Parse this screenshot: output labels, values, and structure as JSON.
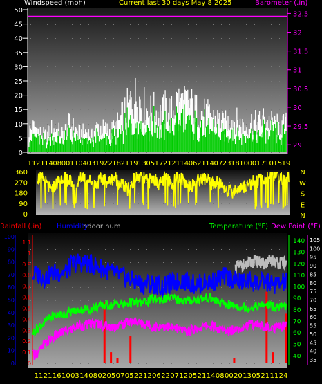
{
  "header": {
    "left_label": "Windspeed (mph)",
    "title": "Current last 30 days May 8 2025",
    "right_label": "Barometer (.in)"
  },
  "colors": {
    "wind_label": "#ffffff",
    "title": "#ffff00",
    "barometer": "#ff00ff",
    "wind_gust": "#ffffff",
    "wind_avg": "#00cc00",
    "direction": "#ffff00",
    "rain": "#ff0000",
    "humidity": "#0000ff",
    "indoor_hum": "#bbbbbb",
    "temperature": "#00ff00",
    "dew_point": "#ff00ff",
    "xaxis": "#ffff00"
  },
  "wind_panel": {
    "left_ticks": [
      "50",
      "45",
      "40",
      "35",
      "30",
      "25",
      "20",
      "15",
      "10",
      "5",
      "0"
    ],
    "right_ticks": [
      "32.5",
      "32",
      "31.5",
      "31",
      "30.5",
      "30",
      "29.5",
      "29"
    ],
    "x_ticks": [
      "11",
      "21",
      "14",
      "08",
      "00",
      "11",
      "04",
      "03",
      "19",
      "22",
      "18",
      "21",
      "19",
      "13",
      "05",
      "17",
      "21",
      "21",
      "14",
      "06",
      "21",
      "14",
      "07",
      "23",
      "18",
      "10",
      "00",
      "17",
      "10",
      "15",
      "19"
    ]
  },
  "direction_panel": {
    "left_ticks": [
      "360",
      "270",
      "180",
      "90",
      "0"
    ],
    "right_ticks": [
      "N",
      "W",
      "S",
      "E",
      "N"
    ]
  },
  "climate_panel": {
    "labels": {
      "rain": "Rainfall (.in)",
      "humidity": "Humidity",
      "indoor_hum": "Indoor hum",
      "temperature": "Temperature (°F)",
      "dew_point": "Dew Point (°F)"
    },
    "humidity_ticks": [
      "100",
      "90",
      "80",
      "70",
      "60",
      "50",
      "40",
      "30",
      "20",
      "10",
      "0"
    ],
    "rain_ticks": [
      "1.1",
      "1",
      "0.9",
      "0.8",
      "0.7",
      "0.6",
      "0.5",
      "0.4",
      "0.3",
      "0.2",
      "0.1",
      "0"
    ],
    "temp_ticks": [
      "140",
      "130",
      "120",
      "110",
      "100",
      "90",
      "80",
      "70",
      "60",
      "50",
      "40"
    ],
    "dew_ticks": [
      "105",
      "100",
      "95",
      "90",
      "85",
      "80",
      "75",
      "70",
      "65",
      "60",
      "55",
      "50",
      "45",
      "40",
      "35"
    ],
    "x_ticks": [
      "11",
      "21",
      "16",
      "10",
      "03",
      "14",
      "08",
      "02",
      "05",
      "07",
      "05",
      "22",
      "12",
      "06",
      "22",
      "07",
      "12",
      "05",
      "21",
      "14",
      "08",
      "00",
      "20",
      "13",
      "05",
      "21",
      "11",
      "24"
    ]
  },
  "chart_data": [
    {
      "type": "line",
      "title": "Current last 30 days May 8 2025",
      "ylabel": "Windspeed (mph)",
      "y2label": "Barometer (.in)",
      "ylim": [
        0,
        50
      ],
      "y2lim": [
        28.8,
        32.6
      ],
      "series": [
        {
          "name": "Windspeed (mph)",
          "values": [
            9,
            11,
            8,
            7,
            10,
            9,
            8,
            12,
            10,
            8,
            9,
            7,
            11,
            10,
            9,
            10,
            14,
            18,
            22,
            24,
            20,
            17,
            18,
            16,
            19,
            17,
            22,
            20,
            21,
            18,
            17,
            16,
            15,
            14,
            12,
            13,
            14,
            12,
            11,
            13,
            12,
            14,
            13,
            12,
            11,
            12
          ]
        },
        {
          "name": "Barometer (.in)",
          "values": [
            32.42,
            32.42,
            32.42,
            32.42,
            32.42,
            32.42,
            32.42,
            32.42,
            32.42,
            32.42
          ]
        }
      ]
    },
    {
      "type": "line",
      "ylabel": "Wind direction",
      "ylim": [
        0,
        360
      ],
      "series": [
        {
          "values": [
            310,
            300,
            200,
            260,
            320,
            280,
            240,
            330,
            290,
            250,
            300,
            270,
            310,
            260,
            200,
            290,
            320,
            280,
            300,
            250,
            310,
            270,
            330,
            260,
            240,
            290,
            300,
            250,
            270,
            230,
            180,
            210,
            230,
            260,
            280,
            300,
            320,
            340,
            300,
            310
          ]
        }
      ]
    },
    {
      "type": "line",
      "series": [
        {
          "name": "Humidity",
          "values": [
            70,
            70,
            68,
            71,
            72,
            72,
            78,
            80,
            79,
            78,
            76,
            74,
            72,
            70,
            68,
            66,
            64,
            62,
            63,
            62,
            60,
            62,
            64,
            66,
            64,
            62,
            63,
            64,
            65,
            68,
            68,
            66,
            64,
            65,
            64,
            63,
            64,
            62,
            63,
            64
          ]
        },
        {
          "name": "Temperature (°F)",
          "values": [
            60,
            65,
            70,
            74,
            75,
            76,
            78,
            79,
            80,
            80,
            82,
            84,
            83,
            85,
            84,
            86,
            85,
            86,
            88,
            89,
            88,
            90,
            89,
            88,
            87,
            88,
            89,
            90,
            88,
            85,
            84,
            83,
            82,
            81,
            82,
            83,
            84,
            82,
            81,
            82
          ]
        },
        {
          "name": "Dew Point (°F)",
          "values": [
            38,
            40,
            45,
            48,
            50,
            52,
            53,
            55,
            55,
            56,
            56,
            55,
            54,
            55,
            56,
            58,
            57,
            56,
            55,
            54,
            55,
            54,
            53,
            52,
            52,
            53,
            54,
            55,
            54,
            52,
            52,
            53,
            54,
            55,
            56,
            55,
            54,
            53,
            54,
            55
          ]
        },
        {
          "name": "Indoor hum",
          "values": [
            75,
            77,
            78,
            76,
            79,
            80,
            81,
            80,
            78,
            79,
            80,
            81,
            80,
            79,
            80,
            79
          ]
        },
        {
          "name": "Rainfall (.in)",
          "values": [
            0,
            0,
            0,
            0,
            0,
            0,
            0,
            0,
            0,
            0,
            0,
            0.55,
            0.1,
            0.05,
            0,
            0.25,
            0,
            0,
            0,
            0,
            0,
            0,
            0,
            0,
            0,
            0,
            0,
            0,
            0,
            0,
            0,
            0.05,
            0,
            0,
            0,
            0,
            0.65,
            0.1,
            0,
            0.45
          ]
        }
      ]
    }
  ]
}
